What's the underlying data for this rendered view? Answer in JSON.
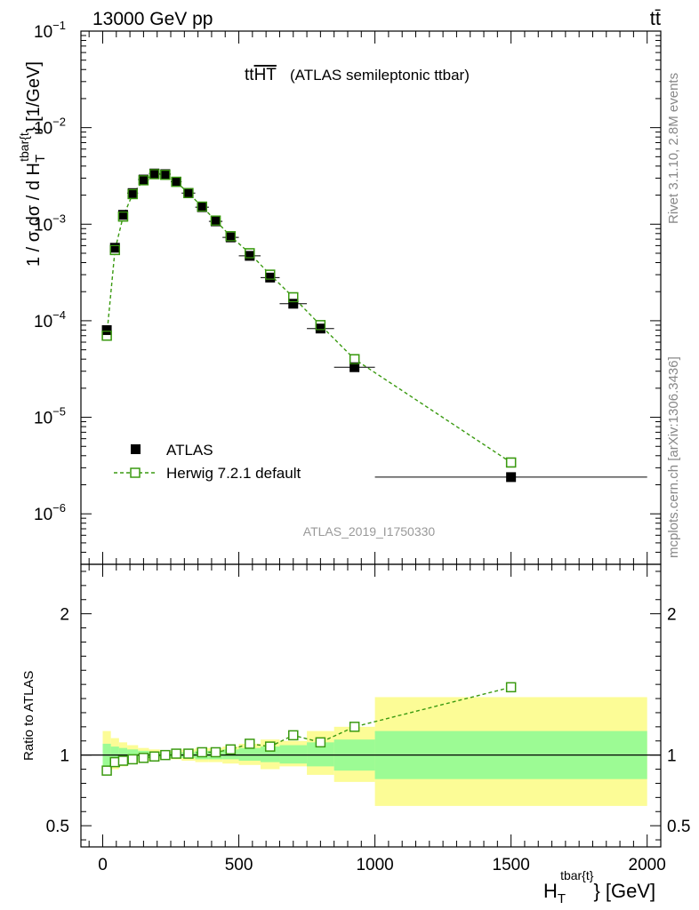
{
  "header": {
    "energy_label": "13000 GeV pp",
    "process_label": "tt̄"
  },
  "chart_data": [
    {
      "type": "scatter",
      "panel": "main",
      "title": "ttHT",
      "title_main": "tt",
      "title_overline": "HT",
      "subtitle": "(ATLAS semileptonic ttbar)",
      "ylabel": "1 / σ dσ / d H_T^{tbar{t}} [1/GeV]",
      "ylabel_prefix": "1 / σ dσ / d H",
      "ylabel_sub": "T",
      "ylabel_sup": "tbar{t",
      "ylabel_suffix": "} [1/GeV]",
      "yscale": "log",
      "ylim": [
        3e-07,
        0.1
      ],
      "xlim": [
        -80,
        2050
      ],
      "ytick_labels": [
        {
          "mantissa": "10",
          "exp": "−6",
          "value": 1e-06
        },
        {
          "mantissa": "10",
          "exp": "−5",
          "value": 1e-05
        },
        {
          "mantissa": "10",
          "exp": "−4",
          "value": 0.0001
        },
        {
          "mantissa": "10",
          "exp": "−3",
          "value": 0.001
        },
        {
          "mantissa": "10",
          "exp": "−2",
          "value": 0.01
        },
        {
          "mantissa": "10",
          "exp": "−1",
          "value": 0.1
        }
      ],
      "series": [
        {
          "name": "ATLAS",
          "marker": "filled-square",
          "color": "#000000",
          "x": [
            15,
            45,
            75,
            110,
            150,
            190,
            230,
            270,
            315,
            365,
            415,
            470,
            540,
            615,
            700,
            800,
            925,
            1500
          ],
          "xerr": [
            15,
            15,
            15,
            20,
            20,
            20,
            20,
            20,
            25,
            25,
            25,
            30,
            40,
            35,
            50,
            50,
            75,
            500
          ],
          "y": [
            8e-05,
            0.00057,
            0.00125,
            0.0021,
            0.0029,
            0.00335,
            0.0033,
            0.00275,
            0.0021,
            0.0015,
            0.00107,
            0.00073,
            0.00047,
            0.00028,
            0.00015,
            8.3e-05,
            3.3e-05,
            2.4e-06
          ]
        },
        {
          "name": "Herwig 7.2.1 default",
          "marker": "open-square",
          "line": "dashed",
          "color": "#3a9a10",
          "x": [
            15,
            45,
            75,
            110,
            150,
            190,
            230,
            270,
            315,
            365,
            415,
            470,
            540,
            615,
            700,
            800,
            925,
            1500
          ],
          "y": [
            7e-05,
            0.00054,
            0.0012,
            0.00205,
            0.00285,
            0.0033,
            0.00325,
            0.00275,
            0.0021,
            0.00152,
            0.00109,
            0.00075,
            0.0005,
            0.0003,
            0.000175,
            9e-05,
            4e-05,
            3.4e-06
          ]
        }
      ],
      "legend": [
        {
          "label": "ATLAS",
          "marker": "filled-square"
        },
        {
          "label": "Herwig 7.2.1 default",
          "marker": "open-square"
        }
      ],
      "legend_position": "bottom-left",
      "watermark": "ATLAS_2019_I1750330"
    },
    {
      "type": "scatter",
      "panel": "ratio",
      "ylabel": "Ratio to ATLAS",
      "ylim": [
        0.35,
        2.35
      ],
      "xlim": [
        -80,
        2050
      ],
      "yticks": [
        0.5,
        1,
        2
      ],
      "ytick_labels": [
        "0.5",
        "1",
        "2"
      ],
      "xticks": [
        0,
        500,
        1000,
        1500,
        2000
      ],
      "xtick_labels": [
        "0",
        "500",
        "1000",
        "1500",
        "2000"
      ],
      "xlabel": "H_T^{tbar{t}} [GeV]",
      "xlabel_main": "H",
      "xlabel_sub": "T",
      "xlabel_sup": "tbar{t}",
      "xlabel_suffix": "} [GeV]",
      "bands": [
        {
          "x0": 0,
          "x1": 30,
          "stat_lo": 0.9,
          "stat_hi": 1.08,
          "tot_lo": 0.86,
          "tot_hi": 1.17
        },
        {
          "x0": 30,
          "x1": 60,
          "stat_lo": 0.93,
          "stat_hi": 1.06,
          "tot_lo": 0.9,
          "tot_hi": 1.12
        },
        {
          "x0": 60,
          "x1": 90,
          "stat_lo": 0.95,
          "stat_hi": 1.05,
          "tot_lo": 0.92,
          "tot_hi": 1.09
        },
        {
          "x0": 90,
          "x1": 130,
          "stat_lo": 0.96,
          "stat_hi": 1.04,
          "tot_lo": 0.94,
          "tot_hi": 1.07
        },
        {
          "x0": 130,
          "x1": 170,
          "stat_lo": 0.97,
          "stat_hi": 1.03,
          "tot_lo": 0.95,
          "tot_hi": 1.05
        },
        {
          "x0": 170,
          "x1": 210,
          "stat_lo": 0.98,
          "stat_hi": 1.02,
          "tot_lo": 0.96,
          "tot_hi": 1.04
        },
        {
          "x0": 210,
          "x1": 250,
          "stat_lo": 0.98,
          "stat_hi": 1.02,
          "tot_lo": 0.97,
          "tot_hi": 1.03
        },
        {
          "x0": 250,
          "x1": 290,
          "stat_lo": 0.98,
          "stat_hi": 1.02,
          "tot_lo": 0.97,
          "tot_hi": 1.03
        },
        {
          "x0": 290,
          "x1": 340,
          "stat_lo": 0.98,
          "stat_hi": 1.02,
          "tot_lo": 0.96,
          "tot_hi": 1.04
        },
        {
          "x0": 340,
          "x1": 390,
          "stat_lo": 0.97,
          "stat_hi": 1.03,
          "tot_lo": 0.95,
          "tot_hi": 1.05
        },
        {
          "x0": 390,
          "x1": 440,
          "stat_lo": 0.97,
          "stat_hi": 1.03,
          "tot_lo": 0.95,
          "tot_hi": 1.05
        },
        {
          "x0": 440,
          "x1": 500,
          "stat_lo": 0.97,
          "stat_hi": 1.04,
          "tot_lo": 0.94,
          "tot_hi": 1.06
        },
        {
          "x0": 500,
          "x1": 580,
          "stat_lo": 0.96,
          "stat_hi": 1.05,
          "tot_lo": 0.93,
          "tot_hi": 1.08
        },
        {
          "x0": 580,
          "x1": 650,
          "stat_lo": 0.95,
          "stat_hi": 1.06,
          "tot_lo": 0.9,
          "tot_hi": 1.11
        },
        {
          "x0": 650,
          "x1": 750,
          "stat_lo": 0.94,
          "stat_hi": 1.07,
          "tot_lo": 0.92,
          "tot_hi": 1.1
        },
        {
          "x0": 750,
          "x1": 850,
          "stat_lo": 0.92,
          "stat_hi": 1.09,
          "tot_lo": 0.86,
          "tot_hi": 1.17
        },
        {
          "x0": 850,
          "x1": 1000,
          "stat_lo": 0.89,
          "stat_hi": 1.11,
          "tot_lo": 0.81,
          "tot_hi": 1.2
        },
        {
          "x0": 1000,
          "x1": 2000,
          "stat_lo": 0.83,
          "stat_hi": 1.17,
          "tot_lo": 0.64,
          "tot_hi": 1.41
        }
      ],
      "reference_line": 1,
      "series": [
        {
          "name": "Herwig 7.2.1 default / ATLAS",
          "marker": "open-square",
          "line": "dashed",
          "color": "#3a9a10",
          "x": [
            15,
            45,
            75,
            110,
            150,
            190,
            230,
            270,
            315,
            365,
            415,
            470,
            540,
            615,
            700,
            800,
            925,
            1500
          ],
          "y": [
            0.89,
            0.95,
            0.96,
            0.97,
            0.98,
            0.99,
            1.0,
            1.01,
            1.01,
            1.02,
            1.02,
            1.04,
            1.08,
            1.06,
            1.14,
            1.09,
            1.2,
            1.48
          ]
        }
      ]
    }
  ],
  "side_labels": {
    "rivet": "Rivet 3.1.10,  2.8M events",
    "mcplots": "mcplots.cern.ch [arXiv:1306.3436]"
  },
  "colors": {
    "stat_band": "#9cfb94",
    "total_band": "#fcfc96",
    "mc": "#3a9a10",
    "data": "#000000",
    "side_text": "#888888",
    "watermark": "#999999"
  }
}
